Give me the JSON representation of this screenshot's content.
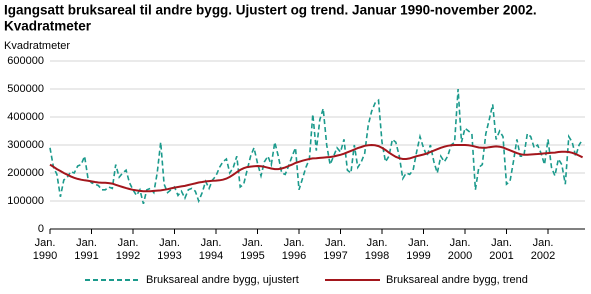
{
  "chart_data": {
    "type": "line",
    "title": "Igangsatt bruksareal til andre bygg. Ujustert og trend. Januar 1990-november 2002.",
    "subtitle": "Kvadratmeter",
    "y_label": "Kvadratmeter",
    "categories": [
      "Jan. 1990",
      null,
      null,
      null,
      null,
      null,
      null,
      null,
      null,
      null,
      null,
      null,
      "Jan. 1991",
      null,
      null,
      null,
      null,
      null,
      null,
      null,
      null,
      null,
      null,
      null,
      "Jan. 1992",
      null,
      null,
      null,
      null,
      null,
      null,
      null,
      null,
      null,
      null,
      null,
      "Jan. 1993",
      null,
      null,
      null,
      null,
      null,
      null,
      null,
      null,
      null,
      null,
      null,
      "Jan. 1994",
      null,
      null,
      null,
      null,
      null,
      null,
      null,
      null,
      null,
      null,
      null,
      "Jan. 1995",
      null,
      null,
      null,
      null,
      null,
      null,
      null,
      null,
      null,
      null,
      null,
      "Jan. 1996",
      null,
      null,
      null,
      null,
      null,
      null,
      null,
      null,
      null,
      null,
      null,
      "Jan. 1997",
      null,
      null,
      null,
      null,
      null,
      null,
      null,
      null,
      null,
      null,
      null,
      "Jan. 1998",
      null,
      null,
      null,
      null,
      null,
      null,
      null,
      null,
      null,
      null,
      null,
      "Jan. 1999",
      null,
      null,
      null,
      null,
      null,
      null,
      null,
      null,
      null,
      null,
      null,
      "Jan. 2000",
      null,
      null,
      null,
      null,
      null,
      null,
      null,
      null,
      null,
      null,
      null,
      "Jan. 2001",
      null,
      null,
      null,
      null,
      null,
      null,
      null,
      null,
      null,
      null,
      null,
      "Jan. 2002",
      null,
      null,
      null,
      null,
      null,
      null,
      null,
      null,
      null,
      null
    ],
    "series": [
      {
        "name": "Bruksareal andre bygg, ujustert",
        "color": "#1b9a8c",
        "dashed": true,
        "values": [
          290000,
          220000,
          195000,
          115000,
          175000,
          185000,
          205000,
          200000,
          225000,
          230000,
          260000,
          180000,
          165000,
          160000,
          155000,
          140000,
          140000,
          150000,
          145000,
          230000,
          185000,
          200000,
          210000,
          165000,
          140000,
          120000,
          140000,
          90000,
          140000,
          145000,
          130000,
          200000,
          310000,
          160000,
          130000,
          140000,
          150000,
          120000,
          135000,
          110000,
          140000,
          145000,
          135000,
          100000,
          130000,
          170000,
          145000,
          175000,
          190000,
          220000,
          240000,
          250000,
          200000,
          220000,
          260000,
          150000,
          160000,
          210000,
          260000,
          290000,
          235000,
          190000,
          240000,
          260000,
          230000,
          310000,
          260000,
          200000,
          195000,
          225000,
          260000,
          290000,
          140000,
          180000,
          220000,
          250000,
          410000,
          280000,
          390000,
          430000,
          300000,
          230000,
          260000,
          290000,
          275000,
          320000,
          210000,
          200000,
          300000,
          220000,
          240000,
          270000,
          370000,
          420000,
          450000,
          460000,
          310000,
          240000,
          260000,
          320000,
          310000,
          260000,
          180000,
          200000,
          195000,
          210000,
          275000,
          330000,
          290000,
          260000,
          300000,
          240000,
          200000,
          260000,
          240000,
          260000,
          300000,
          310000,
          500000,
          310000,
          360000,
          350000,
          340000,
          140000,
          220000,
          230000,
          340000,
          390000,
          445000,
          320000,
          350000,
          330000,
          160000,
          170000,
          240000,
          320000,
          260000,
          260000,
          340000,
          330000,
          290000,
          300000,
          270000,
          230000,
          320000,
          220000,
          190000,
          250000,
          230000,
          160000,
          330000,
          310000,
          260000,
          300000,
          320000
        ]
      },
      {
        "name": "Bruksareal andre bygg, trend",
        "color": "#a3161c",
        "dashed": false,
        "values": [
          230000,
          222000,
          214000,
          207000,
          200000,
          194000,
          188000,
          183000,
          179000,
          176000,
          174000,
          172000,
          170000,
          168000,
          166000,
          165000,
          165000,
          164000,
          162000,
          158000,
          154000,
          150000,
          146000,
          143000,
          140000,
          138000,
          136000,
          135000,
          135000,
          135000,
          136000,
          137000,
          138000,
          140000,
          142000,
          145000,
          148000,
          150000,
          152000,
          154000,
          157000,
          160000,
          163000,
          166000,
          168000,
          170000,
          171000,
          172000,
          173000,
          174000,
          176000,
          180000,
          186000,
          194000,
          203000,
          211000,
          217000,
          221000,
          223000,
          224000,
          225000,
          224000,
          222000,
          219000,
          216000,
          214000,
          214000,
          216000,
          220000,
          225000,
          230000,
          236000,
          240000,
          244000,
          247000,
          250000,
          252000,
          253000,
          254000,
          255000,
          256000,
          257000,
          259000,
          262000,
          265000,
          269000,
          274000,
          279000,
          284000,
          289000,
          293000,
          297000,
          299000,
          300000,
          299000,
          296000,
          290000,
          282000,
          273000,
          265000,
          258000,
          253000,
          250000,
          250000,
          252000,
          256000,
          260000,
          263000,
          266000,
          270000,
          275000,
          280000,
          285000,
          290000,
          294000,
          297000,
          299000,
          300000,
          300000,
          300000,
          300000,
          299000,
          297000,
          294000,
          291000,
          290000,
          290000,
          292000,
          294000,
          295000,
          294000,
          291000,
          286000,
          281000,
          276000,
          271000,
          267000,
          265000,
          265000,
          266000,
          267000,
          268000,
          269000,
          270000,
          271000,
          272000,
          273000,
          275000,
          276000,
          276000,
          275000,
          272000,
          268000,
          262000,
          256000
        ]
      }
    ],
    "ylim": [
      0,
      600000
    ],
    "yticks": [
      0,
      100000,
      200000,
      300000,
      400000,
      500000,
      600000
    ],
    "grid": true
  }
}
